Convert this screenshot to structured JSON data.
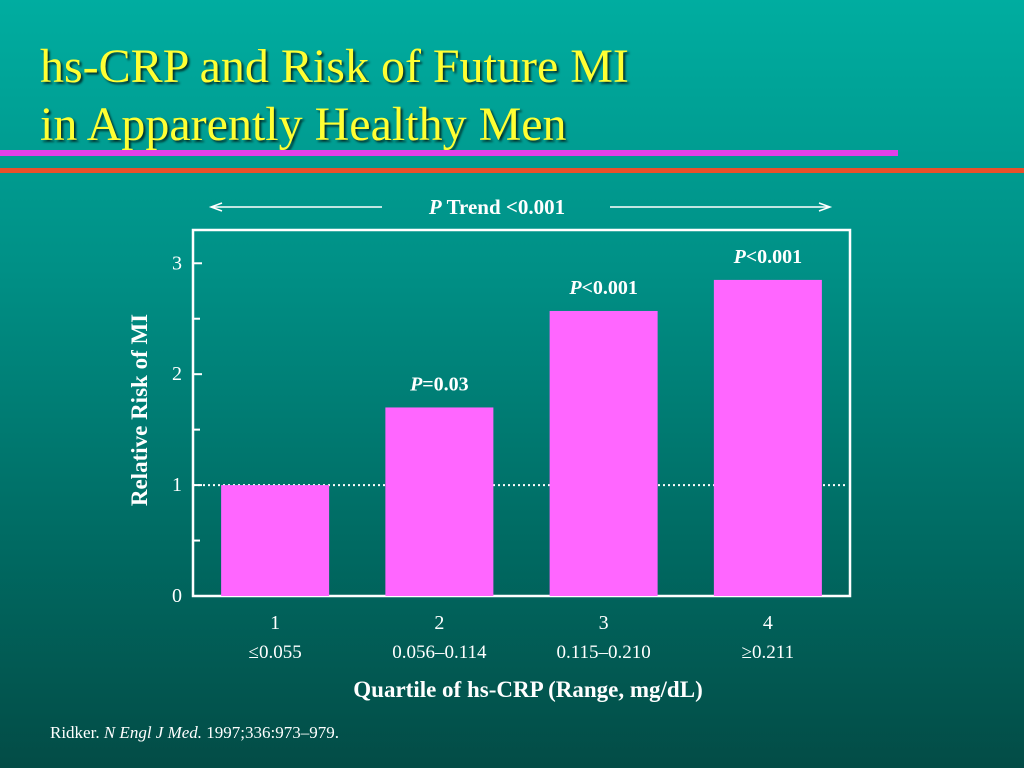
{
  "slide": {
    "title_line1": "hs-CRP and Risk of Future MI",
    "title_line2": "in Apparently Healthy Men",
    "citation_author": "Ridker. ",
    "citation_journal": "N Engl J Med.",
    "citation_rest": " 1997;336:973–979."
  },
  "colors": {
    "background": "#00a89b",
    "title": "#ffff33",
    "bar": "#ff66ff",
    "rule_top": "#e040e8",
    "rule_bottom": "#e8502a",
    "text": "#ffffff"
  },
  "chart_data": {
    "type": "bar",
    "trend_label_italic": "P",
    "trend_label_rest": " Trend <0.001",
    "categories": [
      "1",
      "2",
      "3",
      "4"
    ],
    "ranges": [
      "≤0.055",
      "0.056–0.114",
      "0.115–0.210",
      "≥0.211"
    ],
    "values": [
      1.0,
      1.7,
      2.57,
      2.85
    ],
    "pvalues": [
      null,
      {
        "italic": "P",
        "rest": "=0.03"
      },
      {
        "italic": "P",
        "rest": "<0.001"
      },
      {
        "italic": "P",
        "rest": "<0.001"
      }
    ],
    "xlabel": "Quartile of hs-CRP (Range, mg/dL)",
    "ylabel": "Relative Risk of MI",
    "ylim": [
      0,
      3.3
    ],
    "yticks": [
      0,
      1,
      2,
      3
    ],
    "reference_line": 1,
    "grid": false
  }
}
